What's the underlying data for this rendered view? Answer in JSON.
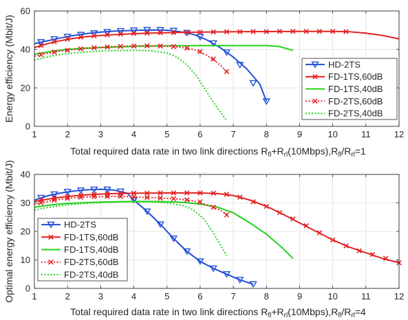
{
  "chart_data": [
    {
      "type": "line",
      "xlabel_main": "Total required data rate in two link directions R",
      "xlabel_sub1": "fl",
      "xlabel_plus": "+R",
      "xlabel_sub2": "rl",
      "xlabel_mid": "(10Mbps),R",
      "xlabel_sub3": "fl",
      "xlabel_slash": "/R",
      "xlabel_sub4": "rl",
      "xlabel_end": "=1",
      "ylabel": "Energy efficiency (Mbit/J)",
      "xlim": [
        1,
        12
      ],
      "ylim": [
        0,
        60
      ],
      "xticks": [
        "1",
        "2",
        "3",
        "4",
        "5",
        "6",
        "7",
        "8",
        "9",
        "10",
        "11",
        "12"
      ],
      "yticks": [
        "0",
        "20",
        "40",
        "60"
      ],
      "grid": true,
      "legend_position": "right-middle",
      "series": [
        {
          "name": "HD-2TS",
          "color": "#1f4fd6",
          "style": "solid",
          "marker": "triangle-down",
          "x": [
            1,
            1.4,
            1.8,
            2.2,
            2.6,
            3,
            3.4,
            3.8,
            4.2,
            4.6,
            5,
            5.4,
            5.8,
            6.2,
            6.6,
            7,
            7.4,
            7.8,
            8
          ],
          "y": [
            43,
            44.5,
            46,
            47.3,
            48.3,
            49,
            49.5,
            49.8,
            50,
            50.1,
            50,
            49.2,
            47.8,
            45,
            41,
            36,
            30,
            22,
            13
          ],
          "markers_x": [
            1.2,
            1.6,
            2.0,
            2.4,
            2.8,
            3.2,
            3.6,
            4.0,
            4.4,
            4.8,
            5.2,
            5.6,
            6.0,
            6.4,
            6.8,
            7.2,
            7.6,
            8.0
          ],
          "markers_y": [
            43.8,
            45.3,
            46.6,
            47.6,
            48.4,
            49.1,
            49.6,
            49.9,
            50.1,
            50.1,
            49.7,
            48.6,
            46.5,
            43.2,
            38.5,
            32,
            22.5,
            13
          ]
        },
        {
          "name": "FD-1TS,60dB",
          "color": "#e32020",
          "style": "solid",
          "marker": "x",
          "x": [
            1,
            1.5,
            2,
            2.5,
            3,
            3.5,
            4,
            4.5,
            5,
            6,
            7,
            8,
            9,
            10,
            10.5,
            11,
            11.5,
            12
          ],
          "y": [
            41,
            43.5,
            45.3,
            46.5,
            47.3,
            47.8,
            48.2,
            48.5,
            48.7,
            49,
            49.2,
            49.3,
            49.4,
            49.4,
            49.2,
            48.5,
            47.3,
            45.5
          ],
          "markers_x": [
            1.2,
            1.6,
            2.0,
            2.4,
            2.8,
            3.2,
            3.6,
            4.0,
            4.4,
            4.8,
            5.2,
            5.6,
            6.0,
            6.4,
            6.8,
            7.2,
            7.6,
            8.0,
            8.4,
            8.8,
            9.2,
            9.6,
            10.0,
            10.4
          ],
          "markers_y": [
            42,
            44,
            45.4,
            46.4,
            47.1,
            47.6,
            48,
            48.3,
            48.5,
            48.7,
            48.8,
            48.9,
            49,
            49.1,
            49.2,
            49.2,
            49.3,
            49.3,
            49.4,
            49.4,
            49.4,
            49.4,
            49.4,
            49.3
          ]
        },
        {
          "name": "FD-1TS,40dB",
          "color": "#22d01a",
          "style": "solid",
          "marker": "none",
          "x": [
            1,
            1.5,
            2,
            2.5,
            3,
            3.5,
            4,
            5,
            6,
            7,
            8,
            8.4,
            8.8
          ],
          "y": [
            37.5,
            39,
            40,
            40.6,
            41,
            41.3,
            41.6,
            41.9,
            42,
            42,
            42,
            41.5,
            39.5
          ]
        },
        {
          "name": "FD-2TS,60dB",
          "color": "#e32020",
          "style": "dotted",
          "marker": "x",
          "x": [
            1,
            1.4,
            1.8,
            2.2,
            2.6,
            3,
            3.4,
            3.8,
            4.2,
            4.6,
            5,
            5.4,
            5.8,
            6.2,
            6.6,
            6.8
          ],
          "y": [
            36.5,
            38,
            39.2,
            40,
            40.6,
            41.1,
            41.5,
            41.7,
            41.9,
            41.9,
            41.7,
            41.2,
            40,
            37,
            32,
            28.5
          ],
          "markers_x": [
            1.2,
            1.6,
            2.0,
            2.4,
            2.8,
            3.2,
            3.6,
            4.0,
            4.4,
            4.8,
            5.2,
            5.6,
            6.0,
            6.4,
            6.8
          ],
          "markers_y": [
            37.3,
            38.6,
            39.6,
            40.3,
            40.9,
            41.3,
            41.6,
            41.8,
            41.9,
            41.8,
            41.5,
            40.7,
            38.9,
            35,
            28.5
          ]
        },
        {
          "name": "FD-2TS,40dB",
          "color": "#22d01a",
          "style": "dotted",
          "marker": "none",
          "x": [
            1,
            1.5,
            2,
            2.5,
            3,
            3.5,
            4,
            4.5,
            5,
            5.3,
            5.6,
            5.9,
            6.2,
            6.5,
            6.8
          ],
          "y": [
            34.5,
            36.5,
            37.8,
            38.6,
            39.1,
            39.4,
            39.5,
            39.3,
            38.2,
            36,
            32,
            26,
            18,
            10,
            3
          ]
        }
      ]
    },
    {
      "type": "line",
      "xlabel_main": "Total required data rate in two link directions R",
      "xlabel_sub1": "fl",
      "xlabel_plus": "+R",
      "xlabel_sub2": "rl",
      "xlabel_mid": "(10Mbps),R",
      "xlabel_sub3": "fl",
      "xlabel_slash": "/R",
      "xlabel_sub4": "rl",
      "xlabel_end": "=4",
      "ylabel": "Optimal energy efficiency (Mbit/J)",
      "xlim": [
        1,
        12
      ],
      "ylim": [
        0,
        40
      ],
      "xticks": [
        "1",
        "2",
        "3",
        "4",
        "5",
        "6",
        "7",
        "8",
        "9",
        "10",
        "11",
        "12"
      ],
      "yticks": [
        "0",
        "10",
        "20",
        "30",
        "40"
      ],
      "grid": true,
      "legend_position": "left-middle",
      "series": [
        {
          "name": "HD-2TS",
          "color": "#1f4fd6",
          "style": "solid",
          "marker": "triangle-down",
          "x": [
            1,
            1.4,
            1.8,
            2.2,
            2.6,
            3,
            3.4,
            3.8,
            4,
            4.4,
            4.8,
            5.2,
            5.6,
            6,
            6.4,
            6.8,
            7.2,
            7.6
          ],
          "y": [
            31,
            32.5,
            33.5,
            34.2,
            34.6,
            34.8,
            34.5,
            33.4,
            31,
            27,
            22.5,
            17.5,
            13,
            9.5,
            7,
            5,
            3,
            1.5
          ],
          "markers_x": [
            1.2,
            1.6,
            2.0,
            2.4,
            2.8,
            3.2,
            3.6,
            4.0,
            4.4,
            4.8,
            5.2,
            5.6,
            6.0,
            6.4,
            6.8,
            7.2,
            7.6
          ],
          "markers_y": [
            31.8,
            33,
            33.9,
            34.4,
            34.7,
            34.7,
            34,
            31,
            27,
            22.5,
            17.5,
            13,
            9.5,
            7,
            5,
            3,
            1.5
          ]
        },
        {
          "name": "FD-1TS,60dB",
          "color": "#e32020",
          "style": "solid",
          "marker": "x",
          "x": [
            1,
            1.5,
            2,
            2.5,
            3,
            3.5,
            4,
            5,
            6,
            6.5,
            7,
            7.5,
            8,
            8.5,
            9,
            9.5,
            10,
            10.5,
            11,
            11.5,
            12
          ],
          "y": [
            30.5,
            31.5,
            32.3,
            32.8,
            33.1,
            33.3,
            33.4,
            33.5,
            33.5,
            33.3,
            32.6,
            31,
            28.8,
            26,
            23,
            20,
            17,
            14.5,
            12.5,
            10.5,
            9
          ],
          "markers_x": [
            1.2,
            1.6,
            2.0,
            2.4,
            2.8,
            3.2,
            3.6,
            4.0,
            4.4,
            4.8,
            5.2,
            5.6,
            6.0,
            6.4,
            6.8,
            7.2,
            7.6,
            8.0,
            8.4,
            8.8,
            9.2,
            9.6,
            10.0,
            10.4,
            10.8,
            11.2,
            11.6,
            12.0
          ],
          "markers_y": [
            31,
            31.7,
            32.3,
            32.7,
            33,
            33.2,
            33.3,
            33.4,
            33.4,
            33.5,
            33.5,
            33.5,
            33.5,
            33.4,
            33,
            32,
            30.4,
            28.8,
            26.6,
            24.4,
            22,
            19.5,
            17,
            14.9,
            13.2,
            11.9,
            10.5,
            9
          ]
        },
        {
          "name": "FD-1TS,40dB",
          "color": "#22d01a",
          "style": "solid",
          "marker": "none",
          "x": [
            1,
            1.5,
            2,
            2.5,
            3,
            3.5,
            4,
            4.5,
            5,
            5.5,
            6,
            6.5,
            7,
            7.5,
            8,
            8.5,
            8.8
          ],
          "y": [
            28.5,
            29.3,
            29.8,
            30.1,
            30.3,
            30.4,
            30.5,
            30.5,
            30.4,
            30.2,
            29.6,
            28.6,
            26.5,
            23,
            19,
            14,
            10.5
          ]
        },
        {
          "name": "FD-2TS,60dB",
          "color": "#e32020",
          "style": "dotted",
          "marker": "x",
          "x": [
            1,
            1.4,
            1.8,
            2.2,
            2.6,
            3,
            3.4,
            3.8,
            4.2,
            4.6,
            5,
            5.4,
            5.8,
            6.2,
            6.6,
            6.8
          ],
          "y": [
            29.5,
            30.5,
            31.3,
            31.8,
            32.1,
            32.2,
            32.3,
            32.2,
            32,
            31.8,
            31.6,
            31.3,
            30.7,
            29.3,
            27.5,
            25.8
          ],
          "markers_x": [
            1.2,
            1.6,
            2.0,
            2.4,
            2.8,
            3.2,
            3.6,
            4.0,
            4.4,
            4.8,
            5.2,
            5.6,
            6.0,
            6.4,
            6.8
          ],
          "markers_y": [
            30.1,
            31,
            31.6,
            32,
            32.2,
            32.3,
            32.3,
            32.1,
            31.9,
            31.7,
            31.5,
            31.1,
            30.4,
            28.5,
            25.8
          ]
        },
        {
          "name": "FD-2TS,40dB",
          "color": "#22d01a",
          "style": "dotted",
          "marker": "none",
          "x": [
            1,
            1.5,
            2,
            2.5,
            3,
            3.5,
            4,
            4.5,
            5,
            5.5,
            5.8,
            6.1,
            6.4,
            6.8
          ],
          "y": [
            27.5,
            28.6,
            29.3,
            29.8,
            30.1,
            30.3,
            30.4,
            30.3,
            30,
            29,
            27.5,
            24.5,
            19.5,
            11.5
          ]
        }
      ]
    }
  ]
}
